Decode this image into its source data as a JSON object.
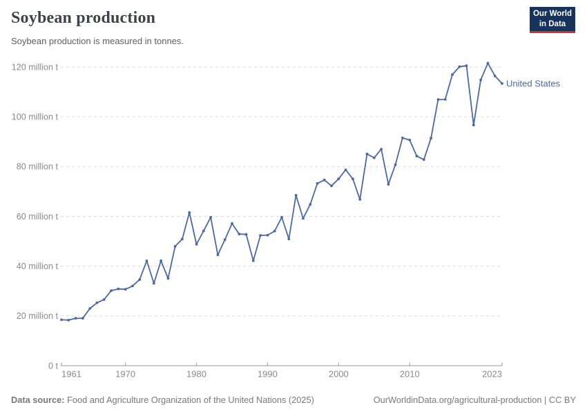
{
  "header": {
    "title": "Soybean production",
    "subtitle": "Soybean production is measured in tonnes.",
    "logo": {
      "line1": "Our World",
      "line2": "in Data",
      "bg": "#16335b",
      "accent": "#d0352c"
    }
  },
  "chart_data": {
    "type": "line",
    "title": "Soybean production",
    "unit": "million tonnes",
    "xlabel": "",
    "ylabel": "",
    "xlim": [
      1961,
      2023
    ],
    "ylim": [
      0,
      120
    ],
    "grid": "dashed-horizontal",
    "legend_position": "end-of-line-label",
    "x_axis": {
      "ticks": [
        1961,
        1970,
        1980,
        1990,
        2000,
        2010,
        2023
      ],
      "labels": [
        "1961",
        "1970",
        "1980",
        "1990",
        "2000",
        "2010",
        "2023"
      ]
    },
    "y_axis": {
      "ticks": [
        0,
        20,
        40,
        60,
        80,
        100,
        120
      ],
      "labels": [
        "0 t",
        "20 million t",
        "40 million t",
        "60 million t",
        "80 million t",
        "100 million t",
        "120 million t"
      ]
    },
    "series": [
      {
        "name": "United States",
        "color": "#4a68a8",
        "x": [
          1961,
          1962,
          1963,
          1964,
          1965,
          1966,
          1967,
          1968,
          1969,
          1970,
          1971,
          1972,
          1973,
          1974,
          1975,
          1976,
          1977,
          1978,
          1979,
          1980,
          1981,
          1982,
          1983,
          1984,
          1985,
          1986,
          1987,
          1988,
          1989,
          1990,
          1991,
          1992,
          1993,
          1994,
          1995,
          1996,
          1997,
          1998,
          1999,
          2000,
          2001,
          2002,
          2003,
          2004,
          2005,
          2006,
          2007,
          2008,
          2009,
          2010,
          2011,
          2012,
          2013,
          2014,
          2015,
          2016,
          2017,
          2018,
          2019,
          2020,
          2021,
          2022,
          2023
        ],
        "values": [
          18.47,
          18.32,
          19.03,
          19.08,
          23.01,
          25.27,
          26.58,
          30.13,
          30.84,
          30.68,
          32.01,
          34.58,
          42.12,
          33.1,
          42.14,
          35.07,
          47.95,
          50.86,
          61.53,
          48.77,
          54.13,
          59.61,
          44.52,
          50.64,
          57.13,
          52.87,
          52.75,
          42.15,
          52.35,
          52.42,
          54.07,
          59.61,
          50.89,
          68.44,
          59.17,
          64.78,
          73.18,
          74.6,
          72.22,
          75.06,
          78.67,
          75.01,
          66.78,
          85.02,
          83.51,
          87.0,
          72.86,
          80.75,
          91.47,
          90.66,
          84.19,
          82.79,
          91.39,
          106.88,
          106.95,
          116.93,
          120.07,
          120.51,
          96.67,
          114.75,
          121.53,
          116.38,
          113.34
        ]
      }
    ]
  },
  "footer": {
    "datasource_label": "Data source:",
    "datasource_text": "Food and Agriculture Organization of the United Nations (2025)",
    "attribution": "OurWorldinData.org/agricultural-production | CC BY"
  }
}
